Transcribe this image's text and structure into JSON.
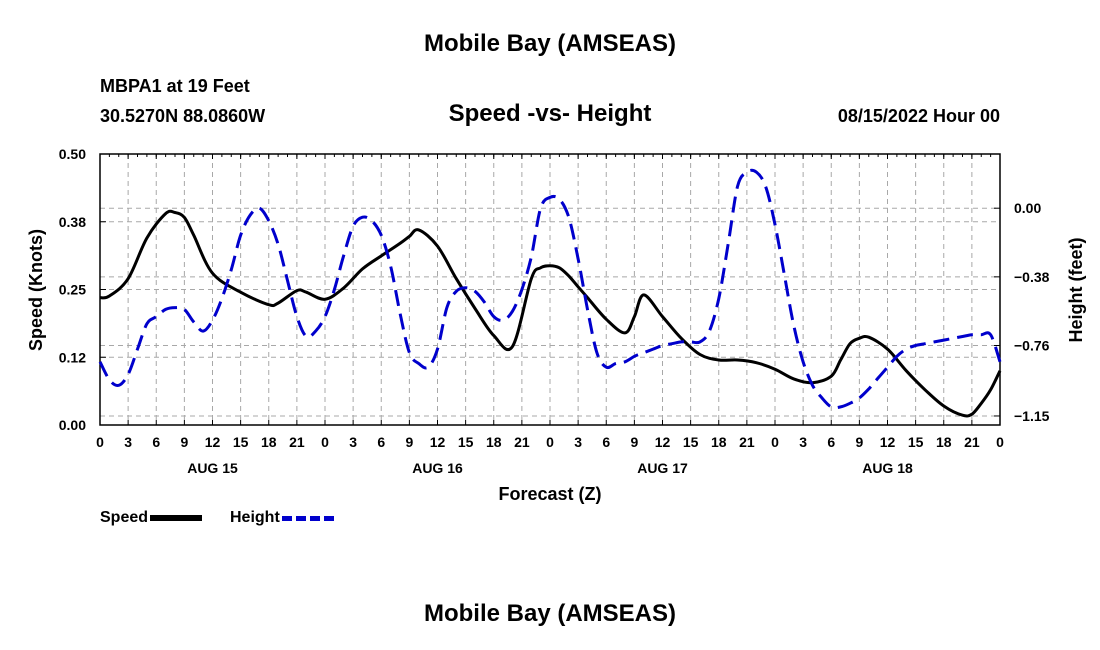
{
  "header": {
    "title": "Mobile Bay (AMSEAS)",
    "station": "MBPA1 at 19 Feet",
    "coords": "30.5270N  88.0860W",
    "subtitle": "Speed -vs- Height",
    "datetime": "08/15/2022 Hour 00"
  },
  "footer": {
    "title": "Mobile Bay (AMSEAS)"
  },
  "legend": {
    "speed_label": "Speed",
    "height_label": "Height"
  },
  "chart_data": {
    "type": "line",
    "xlabel": "Forecast (Z)",
    "ylabel_left": "Speed (Knots)",
    "ylabel_right": "Height (feet)",
    "x_hours_range": [
      0,
      96
    ],
    "x_tick_labels": [
      "0",
      "3",
      "6",
      "9",
      "12",
      "15",
      "18",
      "21",
      "0",
      "3",
      "6",
      "9",
      "12",
      "15",
      "18",
      "21",
      "0",
      "3",
      "6",
      "9",
      "12",
      "15",
      "18",
      "21",
      "0",
      "3",
      "6",
      "9",
      "12",
      "15",
      "18",
      "21",
      "0"
    ],
    "day_labels": [
      {
        "hour": 12,
        "label": "AUG 15"
      },
      {
        "hour": 36,
        "label": "AUG 16"
      },
      {
        "hour": 60,
        "label": "AUG 17"
      },
      {
        "hour": 84,
        "label": "AUG 18"
      }
    ],
    "left_axis": {
      "ylim": [
        0,
        0.5
      ],
      "ticks": [
        "0.00",
        "0.12",
        "0.25",
        "0.38",
        "0.50"
      ],
      "tick_values": [
        0,
        0.125,
        0.25,
        0.375,
        0.5
      ]
    },
    "right_axis": {
      "ylim": [
        -1.2,
        0.3
      ],
      "ticks": [
        "−1.15",
        "−0.76",
        "−0.38",
        "0.00"
      ],
      "tick_values": [
        -1.15,
        -0.76,
        -0.38,
        0.0
      ]
    },
    "grid": true,
    "series": [
      {
        "name": "Speed",
        "axis": "left",
        "color": "#000000",
        "dash": "solid",
        "x": [
          0,
          1,
          3,
          5,
          7,
          8,
          9,
          10,
          12,
          15,
          18,
          19,
          21,
          22,
          24,
          26,
          28,
          30,
          32,
          33,
          34,
          36,
          38,
          40,
          42,
          44,
          46,
          47,
          48,
          49,
          50,
          51,
          52,
          54,
          56,
          57,
          58,
          60,
          62,
          64,
          66,
          68,
          70,
          72,
          74,
          76,
          78,
          79,
          80,
          81,
          82,
          84,
          86,
          88,
          90,
          92,
          93,
          94,
          95,
          96
        ],
        "y": [
          0.235,
          0.238,
          0.27,
          0.345,
          0.39,
          0.392,
          0.383,
          0.35,
          0.28,
          0.245,
          0.222,
          0.225,
          0.248,
          0.245,
          0.232,
          0.253,
          0.288,
          0.312,
          0.335,
          0.348,
          0.36,
          0.33,
          0.27,
          0.215,
          0.165,
          0.145,
          0.27,
          0.29,
          0.294,
          0.29,
          0.275,
          0.255,
          0.235,
          0.195,
          0.17,
          0.2,
          0.24,
          0.2,
          0.16,
          0.13,
          0.12,
          0.12,
          0.115,
          0.103,
          0.085,
          0.078,
          0.09,
          0.12,
          0.15,
          0.16,
          0.162,
          0.14,
          0.1,
          0.065,
          0.035,
          0.018,
          0.02,
          0.04,
          0.065,
          0.1
        ]
      },
      {
        "name": "Height",
        "axis": "right",
        "color": "#0000cc",
        "dash": "dashed",
        "x": [
          0,
          1,
          2,
          3,
          4,
          5,
          6,
          7,
          8,
          9,
          10,
          11,
          12,
          13,
          14,
          15,
          16,
          17,
          18,
          19,
          20,
          21,
          22,
          23,
          24,
          25,
          26,
          27,
          28,
          29,
          30,
          31,
          32,
          33,
          34,
          35,
          36,
          37,
          38,
          39,
          40,
          41,
          42,
          43,
          44,
          45,
          46,
          47,
          48,
          49,
          50,
          51,
          52,
          53,
          54,
          55,
          56,
          57,
          58,
          59,
          60,
          61,
          62,
          63,
          64,
          65,
          66,
          67,
          68,
          69,
          70,
          71,
          72,
          73,
          74,
          75,
          76,
          77,
          78,
          79,
          80,
          81,
          82,
          83,
          84,
          85,
          86,
          87,
          88,
          89,
          90,
          91,
          92,
          93,
          94,
          95,
          96
        ],
        "y": [
          -0.85,
          -0.95,
          -0.98,
          -0.92,
          -0.78,
          -0.64,
          -0.6,
          -0.56,
          -0.55,
          -0.56,
          -0.63,
          -0.68,
          -0.62,
          -0.5,
          -0.34,
          -0.15,
          -0.04,
          0.0,
          -0.07,
          -0.2,
          -0.4,
          -0.6,
          -0.71,
          -0.68,
          -0.6,
          -0.45,
          -0.26,
          -0.1,
          -0.05,
          -0.07,
          -0.15,
          -0.32,
          -0.58,
          -0.8,
          -0.86,
          -0.88,
          -0.78,
          -0.55,
          -0.46,
          -0.44,
          -0.46,
          -0.52,
          -0.6,
          -0.62,
          -0.57,
          -0.45,
          -0.27,
          0.0,
          0.06,
          0.05,
          -0.05,
          -0.28,
          -0.56,
          -0.8,
          -0.88,
          -0.86,
          -0.85,
          -0.82,
          -0.8,
          -0.78,
          -0.76,
          -0.75,
          -0.74,
          -0.74,
          -0.74,
          -0.68,
          -0.5,
          -0.2,
          0.12,
          0.2,
          0.2,
          0.12,
          -0.09,
          -0.37,
          -0.65,
          -0.85,
          -0.98,
          -1.05,
          -1.1,
          -1.1,
          -1.08,
          -1.05,
          -1.0,
          -0.94,
          -0.88,
          -0.82,
          -0.78,
          -0.76,
          -0.75,
          -0.74,
          -0.73,
          -0.72,
          -0.71,
          -0.7,
          -0.7,
          -0.7,
          -0.85
        ]
      }
    ]
  }
}
